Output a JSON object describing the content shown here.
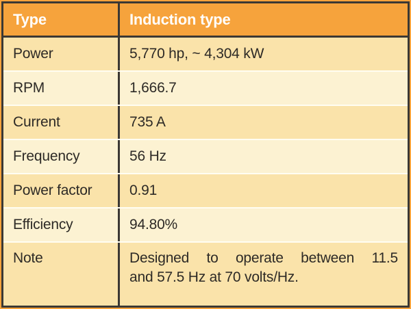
{
  "header": {
    "key": "Type",
    "value": "Induction type"
  },
  "rows": [
    {
      "label": "Power",
      "value": "5,770 hp, ~ 4,304 kW"
    },
    {
      "label": "RPM",
      "value": "1,666.7"
    },
    {
      "label": "Current",
      "value": "735 A"
    },
    {
      "label": "Frequency",
      "value": "56 Hz"
    },
    {
      "label": "Power factor",
      "value": "0.91"
    },
    {
      "label": "Efficiency",
      "value": "94.80%"
    }
  ],
  "note": {
    "label": "Note",
    "lines": [
      "Designed to operate between 11.5",
      "and 57.5 Hz at 70 volts/Hz."
    ]
  },
  "colors": {
    "header_orange": "#f6a33c",
    "row_tan": "#fae3aa",
    "row_cream": "#fcf2d2",
    "border_dark": "#3b3834",
    "separator_light": "#fffdf2",
    "header_text": "#ffffff",
    "body_text": "#2d2a26"
  }
}
